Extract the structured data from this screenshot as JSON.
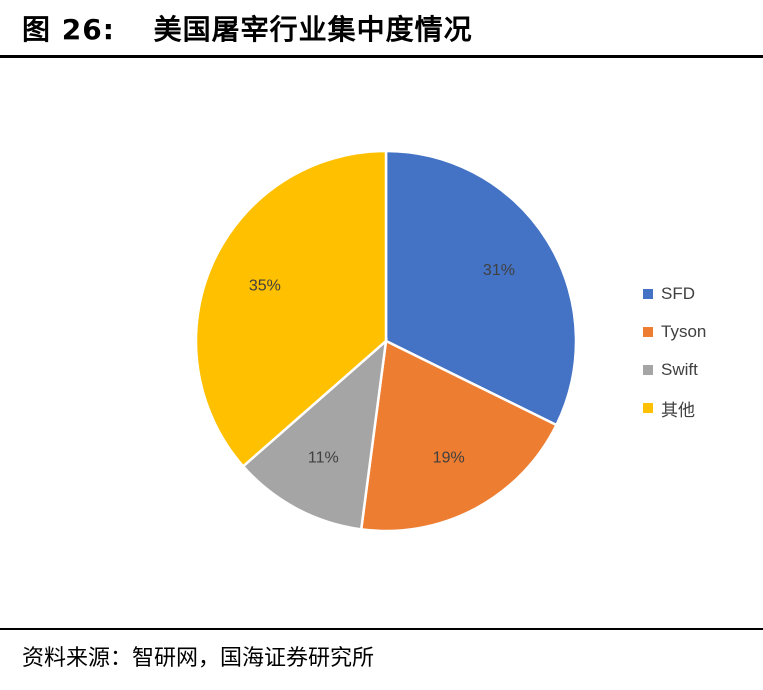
{
  "header": {
    "figure_label": "图 26:",
    "title": "美国屠宰行业集中度情况"
  },
  "footer": {
    "source": "资料来源：智研网，国海证券研究所"
  },
  "chart_data": {
    "type": "pie",
    "title": "",
    "categories": [
      "SFD",
      "Tyson",
      "Swift",
      "其他"
    ],
    "values": [
      31,
      19,
      11,
      35
    ],
    "labels": [
      "31%",
      "19%",
      "11%",
      "35%"
    ],
    "colors": [
      "#4472C4",
      "#ED7D31",
      "#A5A5A5",
      "#FFC000"
    ],
    "legend_position": "right",
    "start_angle": "12 o'clock, clockwise"
  }
}
